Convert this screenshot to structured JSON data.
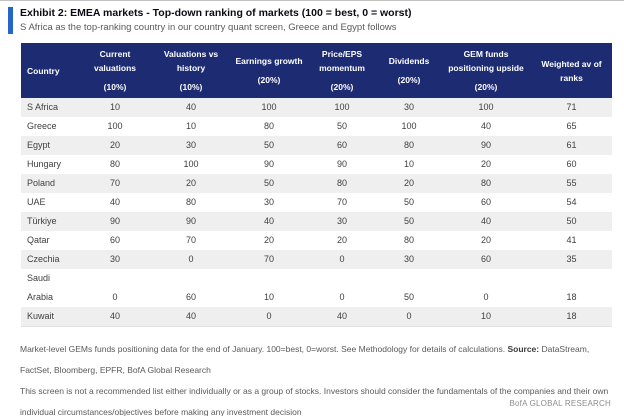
{
  "exhibit": {
    "title": "Exhibit 2: EMEA markets - Top-down ranking of markets (100 = best, 0 = worst)",
    "subtitle": "S Africa as the top-ranking country in our country quant screen, Greece and Egypt follows"
  },
  "table": {
    "columns": [
      {
        "label": "Country",
        "weight": ""
      },
      {
        "label": "Current valuations",
        "weight": "(10%)"
      },
      {
        "label": "Valuations vs history",
        "weight": "(10%)"
      },
      {
        "label": "Earnings growth",
        "weight": "(20%)"
      },
      {
        "label": "Price/EPS momentum",
        "weight": "(20%)"
      },
      {
        "label": "Dividends",
        "weight": "(20%)"
      },
      {
        "label": "GEM funds positioning upside",
        "weight": "(20%)"
      },
      {
        "label": "Weighted av of ranks",
        "weight": ""
      }
    ],
    "rows": [
      {
        "country": "S Africa",
        "values": [
          "10",
          "40",
          "100",
          "100",
          "30",
          "100",
          "71"
        ],
        "shaded": true
      },
      {
        "country": "Greece",
        "values": [
          "100",
          "10",
          "80",
          "50",
          "100",
          "40",
          "65"
        ],
        "shaded": false
      },
      {
        "country": "Egypt",
        "values": [
          "20",
          "30",
          "50",
          "60",
          "80",
          "90",
          "61"
        ],
        "shaded": true
      },
      {
        "country": "Hungary",
        "values": [
          "80",
          "100",
          "90",
          "90",
          "10",
          "20",
          "60"
        ],
        "shaded": false
      },
      {
        "country": "Poland",
        "values": [
          "70",
          "20",
          "50",
          "80",
          "20",
          "80",
          "55"
        ],
        "shaded": true
      },
      {
        "country": "UAE",
        "values": [
          "40",
          "80",
          "30",
          "70",
          "50",
          "60",
          "54"
        ],
        "shaded": false
      },
      {
        "country": "Türkiye",
        "values": [
          "90",
          "90",
          "40",
          "30",
          "50",
          "40",
          "50"
        ],
        "shaded": true
      },
      {
        "country": "Qatar",
        "values": [
          "60",
          "70",
          "20",
          "20",
          "80",
          "20",
          "41"
        ],
        "shaded": false
      },
      {
        "country": "Czechia",
        "values": [
          "30",
          "0",
          "70",
          "0",
          "30",
          "60",
          "35"
        ],
        "shaded": true
      },
      {
        "country": "Saudi",
        "values": [
          "",
          "",
          "",
          "",
          "",
          "",
          ""
        ],
        "shaded": false
      },
      {
        "country": "Arabia",
        "values": [
          "0",
          "60",
          "10",
          "0",
          "50",
          "0",
          "18"
        ],
        "shaded": false
      },
      {
        "country": "Kuwait",
        "values": [
          "40",
          "40",
          "0",
          "40",
          "0",
          "10",
          "18"
        ],
        "shaded": true
      }
    ]
  },
  "footnotes": {
    "note1_text": "Market-level GEMs funds positioning data for the end of January. 100=best, 0=worst. See Methodology for details of calculations. ",
    "note1_source_label": "Source:",
    "note1_source_text": " DataStream, FactSet, Bloomberg, EPFR, BofA Global Research",
    "note2": "This screen is not a recommended list either individually or as a group of stocks. Investors should consider the fundamentals of the companies and their own individual circumstances/objectives before making any investment decision"
  },
  "branding": "BofA GLOBAL RESEARCH",
  "colors": {
    "header_bg": "#1D2C72",
    "accent_bar": "#2566C8",
    "row_shade": "#EFEFEF",
    "body_text": "#404040",
    "footnote_text": "#5A5A5A"
  }
}
